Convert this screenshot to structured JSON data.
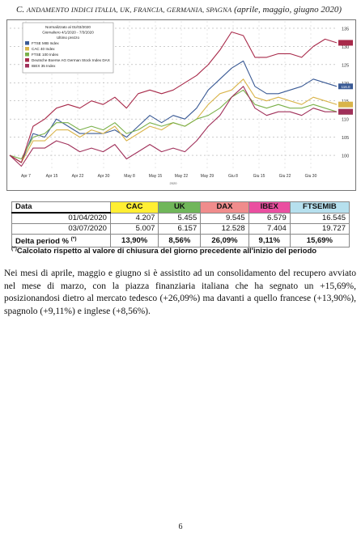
{
  "header": {
    "title_prefix": "C.",
    "title_caps": "ANDAMENTO INDICI ITALIA, UK, FRANCIA, GERMANIA, SPAGNA",
    "title_suffix": "(aprile, maggio, giugno 2020)"
  },
  "chart": {
    "legend_lines": [
      "Normalizzato al 01/03/2020",
      "Giornaliero 4/1/2020 - 7/3/2020",
      "Ultimo prezzo"
    ],
    "series_labels": [
      "FTSE MIB Index",
      "CAC 40 Index",
      "FTSE 100 Index",
      "Deutsche Boerse AG German Stock Index DAX",
      "IBEX 35 Index"
    ],
    "x_caption": "2020",
    "end_badge": "116.0"
  },
  "chart_data": {
    "type": "line",
    "x": [
      "Apr 1",
      "Apr 3",
      "Apr 7",
      "Apr 9",
      "Apr 11",
      "Apr 15",
      "Apr 18",
      "Apr 22",
      "Apr 25",
      "Apr 30",
      "May 3",
      "May 8",
      "May 11",
      "May 15",
      "May 19",
      "May 22",
      "May 25",
      "May 29",
      "Jun 1",
      "Jun 3",
      "Jun 5",
      "Jun 8",
      "Jun 11",
      "Jun 15",
      "Jun 19",
      "Jun 22",
      "Jun 26",
      "Jun 30",
      "Jul 3"
    ],
    "xticks": [
      "Apr 7",
      "Apr 15",
      "Apr 22",
      "Apr 30",
      "May 8",
      "May 15",
      "May 22",
      "May 29",
      "Giu 8",
      "Giu 15",
      "Giu 22",
      "Giu 30"
    ],
    "yticks": [
      100,
      105,
      110,
      115,
      120,
      125,
      130,
      135
    ],
    "ylim": [
      96,
      137
    ],
    "xlabel": "2020",
    "series": [
      {
        "name": "FTSE MIB Index",
        "color": "#3a5a95",
        "values": [
          100,
          98,
          106,
          105,
          110,
          108,
          106,
          106,
          106,
          107,
          105,
          108,
          111,
          109,
          111,
          110,
          113,
          118,
          121,
          124,
          126,
          119,
          117,
          117,
          118,
          119,
          121,
          120,
          119
        ]
      },
      {
        "name": "CAC 40 Index",
        "color": "#d9b44a",
        "values": [
          100,
          98,
          104,
          104,
          107,
          107,
          105,
          107,
          106,
          108,
          104,
          106,
          108,
          107,
          109,
          108,
          110,
          114,
          117,
          118,
          121,
          116,
          115,
          116,
          115,
          114,
          116,
          115,
          114
        ]
      },
      {
        "name": "FTSE 100 Index",
        "color": "#7ab04a",
        "values": [
          100,
          99,
          105,
          106,
          109,
          109,
          107,
          108,
          107,
          109,
          106,
          107,
          109,
          108,
          109,
          108,
          110,
          111,
          113,
          116,
          118,
          114,
          113,
          114,
          113,
          113,
          114,
          113,
          112
        ]
      },
      {
        "name": "Deutsche Boerse AG German Stock Index DAX",
        "color": "#a82a4a",
        "values": [
          100,
          98,
          108,
          110,
          113,
          114,
          113,
          115,
          114,
          116,
          113,
          117,
          118,
          117,
          118,
          120,
          122,
          125,
          129,
          134,
          133,
          127,
          127,
          128,
          128,
          127,
          130,
          132,
          131
        ]
      },
      {
        "name": "IBEX 35 Index",
        "color": "#a0305a",
        "values": [
          100,
          97,
          102,
          102,
          104,
          103,
          101,
          102,
          101,
          103,
          99,
          101,
          103,
          101,
          102,
          101,
          104,
          108,
          111,
          116,
          119,
          113,
          111,
          112,
          112,
          111,
          113,
          112,
          112
        ]
      }
    ]
  },
  "table": {
    "headers": [
      "Data",
      "CAC",
      "UK",
      "DAX",
      "IBEX",
      "FTSEMIB"
    ],
    "header_colors": [
      "#ffffff",
      "#ffee33",
      "#70b65a",
      "#f08c8c",
      "#ea4fa0",
      "#b6e0ee"
    ],
    "rows": [
      {
        "date": "01/04/2020",
        "values": [
          "4.207",
          "5.455",
          "9.545",
          "6.579",
          "16.545"
        ]
      },
      {
        "date": "03/07/2020",
        "values": [
          "5.007",
          "6.157",
          "12.528",
          "7.404",
          "19.727"
        ]
      }
    ],
    "delta": {
      "label": "Delta period %",
      "sup": "(*)",
      "values": [
        "13,90%",
        "8,56%",
        "26,09%",
        "9,11%",
        "15,69%"
      ]
    }
  },
  "footnote": {
    "mark": "(*)",
    "text": "Calcolato rispetto al valore di chiusura del giorno precedente all'inizio del periodo"
  },
  "paragraph": "Nei mesi di aprile, maggio e giugno si è assistito ad un consolidamento del recupero avviato nel mese di marzo, con la piazza finanziaria italiana che ha segnato un +15,69%, posizionandosi dietro al mercato tedesco (+26,09%) ma davanti a quello francese (+13,90%), spagnolo (+9,11%) e inglese (+8,56%).",
  "page_number": "6"
}
